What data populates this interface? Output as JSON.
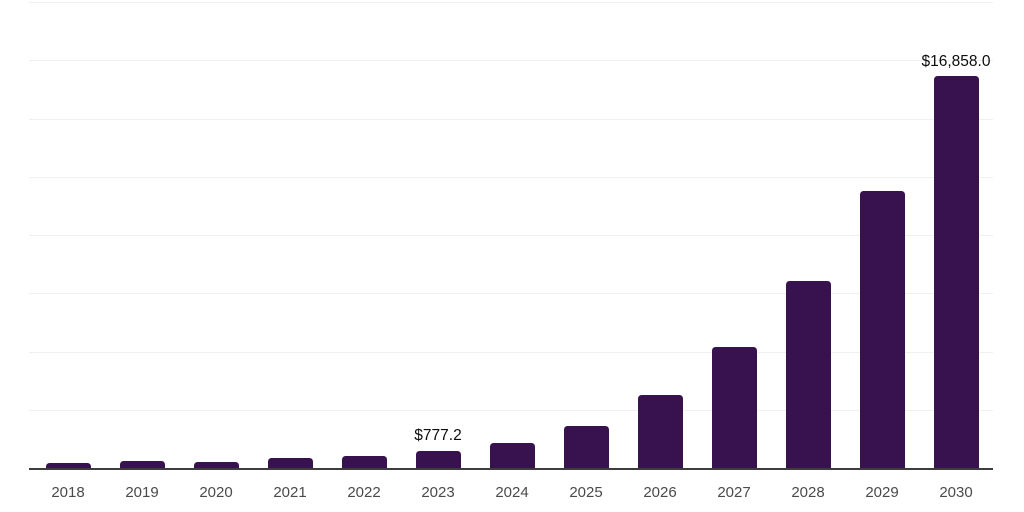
{
  "chart_data": {
    "type": "bar",
    "title": "",
    "xlabel": "",
    "ylabel": "",
    "categories": [
      "2018",
      "2019",
      "2020",
      "2021",
      "2022",
      "2023",
      "2024",
      "2025",
      "2026",
      "2027",
      "2028",
      "2029",
      "2030"
    ],
    "values": [
      255,
      330,
      310,
      455,
      570,
      777.2,
      1125,
      1865,
      3180,
      5240,
      8050,
      11930,
      16858.0
    ],
    "annotations": [
      {
        "category": "2023",
        "label": "$777.2"
      },
      {
        "category": "2030",
        "label": "$16,858.0"
      }
    ],
    "ylim": [
      0,
      20000
    ],
    "gridline_step": 2500,
    "grid": true,
    "legend": "none",
    "y_axis_tick_labels_visible": false,
    "colors": {
      "bar": "#38124E",
      "gridline": "#f0f0f0",
      "axis_line": "#3d3d3d",
      "tick_label": "#4a4a4a",
      "value_label": "#0d0d0d",
      "background": "#ffffff"
    }
  }
}
